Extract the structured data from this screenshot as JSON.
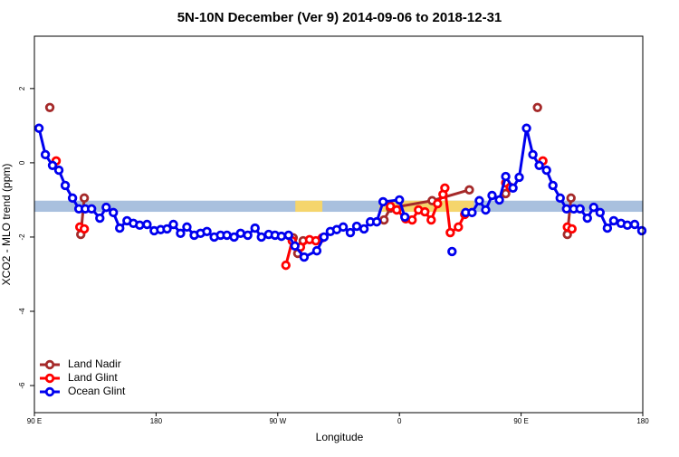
{
  "chart_data": {
    "type": "line",
    "title": "5N-10N December (Ver 9)   2014-09-06 to 2018-12-31",
    "x_label": "Longitude",
    "y_label": "XCO2 - MLO trend (ppm)",
    "xlim": [
      90,
      540
    ],
    "ylim": [
      -6.73,
      3.41
    ],
    "xticks": [
      {
        "value": 90,
        "label": "90 E"
      },
      {
        "value": 180,
        "label": "180"
      },
      {
        "value": 270,
        "label": "90 W"
      },
      {
        "value": 360,
        "label": "0"
      },
      {
        "value": 450,
        "label": "90 E"
      },
      {
        "value": 540,
        "label": "180"
      }
    ],
    "yticks": [
      -6,
      -4,
      -2,
      0,
      2
    ],
    "grid": false,
    "legend": "bottom-left",
    "band": {
      "ylim": [
        -1.32,
        -1.02
      ],
      "color": "#a9c0de",
      "patches": [
        [
          283,
          303
        ],
        [
          345,
          415
        ]
      ],
      "patch_color": "#f5d56c"
    },
    "series": [
      {
        "name": "Land Nadir",
        "color": "#a52a2a",
        "x": [
          101.4,
          null,
          124.3,
          126.9,
          null,
          281.4,
          284.8,
          288.8,
          null,
          348.6,
          353.3,
          384.2,
          411.7,
          null,
          438.6,
          null,
          462.1,
          null,
          484.2,
          486.9
        ],
        "values": [
          1.49,
          null,
          -1.93,
          -0.95,
          null,
          -2.02,
          -2.44,
          -2.1,
          null,
          -1.54,
          -1.22,
          -1.02,
          -0.73,
          null,
          -0.83,
          null,
          1.49,
          null,
          -1.93,
          -0.95
        ]
      },
      {
        "name": "Land Glint",
        "color": "#ff0000",
        "x": [
          106.1,
          null,
          123.6,
          126.9,
          null,
          276.0,
          280.7,
          286.8,
          293.5,
          298.2,
          302.9,
          null,
          353.3,
          358.0,
          364.7,
          369.4,
          374.1,
          378.8,
          383.5,
          388.2,
          392.2,
          393.6,
          397.6,
          403.6,
          408.3,
          null,
          438.6,
          441.9,
          null,
          466.1,
          null,
          484.2,
          487.6
        ],
        "values": [
          0.05,
          null,
          -1.73,
          -1.78,
          null,
          -2.76,
          -2.1,
          -2.27,
          -2.07,
          -2.1,
          -2.02,
          null,
          -1.17,
          -1.27,
          -1.51,
          -1.54,
          -1.27,
          -1.32,
          -1.54,
          -1.1,
          -0.85,
          -0.68,
          -1.88,
          -1.73,
          -1.39,
          null,
          -0.54,
          -0.66,
          null,
          0.05,
          null,
          -1.73,
          -1.78
        ]
      },
      {
        "name": "Ocean Glint",
        "color": "#0000ee",
        "x": [
          93.4,
          98.1,
          103.4,
          108.1,
          112.8,
          118.2,
          122.9,
          127.6,
          132.3,
          138.4,
          143.1,
          148.4,
          153.1,
          158.5,
          163.2,
          167.9,
          173.3,
          178.6,
          183.4,
          188.1,
          192.8,
          198.1,
          202.8,
          208.2,
          212.9,
          217.6,
          223.0,
          227.7,
          232.4,
          237.7,
          242.5,
          247.8,
          253.2,
          257.9,
          263.3,
          268.0,
          272.7,
          278.0,
          282.7,
          289.5,
          298.9,
          304.2,
          308.9,
          313.6,
          318.4,
          323.7,
          328.4,
          333.8,
          338.5,
          343.2,
          347.9,
          360.0,
          364.0,
          null,
          398.9,
          null,
          409.0,
          413.7,
          419.1,
          423.8,
          428.5,
          433.9,
          438.6,
          444.0,
          448.6,
          454.0,
          458.7,
          463.4,
          468.8,
          473.5,
          478.9,
          483.6,
          488.9,
          493.6,
          499.0,
          503.7,
          508.4,
          513.8,
          518.5,
          523.9,
          528.6,
          534.0,
          539.3
        ],
        "values": [
          0.93,
          0.22,
          -0.07,
          -0.2,
          -0.61,
          -0.95,
          -1.24,
          -1.24,
          -1.24,
          -1.49,
          -1.2,
          -1.34,
          -1.76,
          -1.56,
          -1.63,
          -1.68,
          -1.66,
          -1.83,
          -1.8,
          -1.78,
          -1.66,
          -1.9,
          -1.73,
          -1.95,
          -1.9,
          -1.85,
          -2.0,
          -1.95,
          -1.95,
          -2.0,
          -1.9,
          -1.95,
          -1.76,
          -2.0,
          -1.93,
          -1.95,
          -1.98,
          -1.95,
          -2.24,
          -2.54,
          -2.37,
          -2.0,
          -1.85,
          -1.8,
          -1.73,
          -1.88,
          -1.71,
          -1.78,
          -1.59,
          -1.59,
          -1.05,
          -1.0,
          -1.46,
          null,
          -2.39,
          null,
          -1.34,
          -1.34,
          -1.02,
          -1.27,
          -0.88,
          -1.0,
          -0.37,
          -0.68,
          -0.39,
          0.93,
          0.22,
          -0.07,
          -0.2,
          -0.61,
          -0.95,
          -1.24,
          -1.24,
          -1.24,
          -1.49,
          -1.2,
          -1.34,
          -1.76,
          -1.56,
          -1.63,
          -1.68,
          -1.66,
          -1.83
        ]
      }
    ]
  }
}
